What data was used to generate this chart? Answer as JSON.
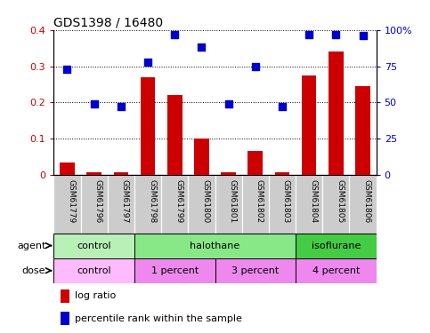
{
  "title": "GDS1398 / 16480",
  "samples": [
    "GSM61779",
    "GSM61796",
    "GSM61797",
    "GSM61798",
    "GSM61799",
    "GSM61800",
    "GSM61801",
    "GSM61802",
    "GSM61803",
    "GSM61804",
    "GSM61805",
    "GSM61806"
  ],
  "log_ratio": [
    0.035,
    0.008,
    0.008,
    0.27,
    0.22,
    0.1,
    0.008,
    0.065,
    0.008,
    0.275,
    0.34,
    0.245
  ],
  "pct_rank": [
    73,
    49,
    47,
    78,
    97,
    88,
    49,
    75,
    47,
    97,
    97,
    96
  ],
  "ylim_left": [
    0,
    0.4
  ],
  "ylim_right": [
    0,
    100
  ],
  "yticks_left": [
    0,
    0.1,
    0.2,
    0.3,
    0.4
  ],
  "yticks_right": [
    0,
    25,
    50,
    75,
    100
  ],
  "ytick_labels_left": [
    "0",
    "0.1",
    "0.2",
    "0.3",
    "0.4"
  ],
  "ytick_labels_right": [
    "0",
    "25",
    "50",
    "75",
    "100%"
  ],
  "agent_groups": [
    {
      "label": "control",
      "start": 0,
      "end": 3,
      "color": "#b8f0b8"
    },
    {
      "label": "halothane",
      "start": 3,
      "end": 9,
      "color": "#88e888"
    },
    {
      "label": "isoflurane",
      "start": 9,
      "end": 12,
      "color": "#44cc44"
    }
  ],
  "dose_groups": [
    {
      "label": "control",
      "start": 0,
      "end": 3,
      "color": "#ffbbff"
    },
    {
      "label": "1 percent",
      "start": 3,
      "end": 6,
      "color": "#ee88ee"
    },
    {
      "label": "3 percent",
      "start": 6,
      "end": 9,
      "color": "#ee88ee"
    },
    {
      "label": "4 percent",
      "start": 9,
      "end": 12,
      "color": "#ee88ee"
    }
  ],
  "bar_color": "#cc0000",
  "dot_color": "#0000cc",
  "bar_width": 0.55,
  "dot_size": 28,
  "background_color": "#ffffff",
  "label_area_bg": "#cccccc",
  "legend_red": "log ratio",
  "legend_blue": "percentile rank within the sample",
  "agent_label": "agent",
  "dose_label": "dose"
}
